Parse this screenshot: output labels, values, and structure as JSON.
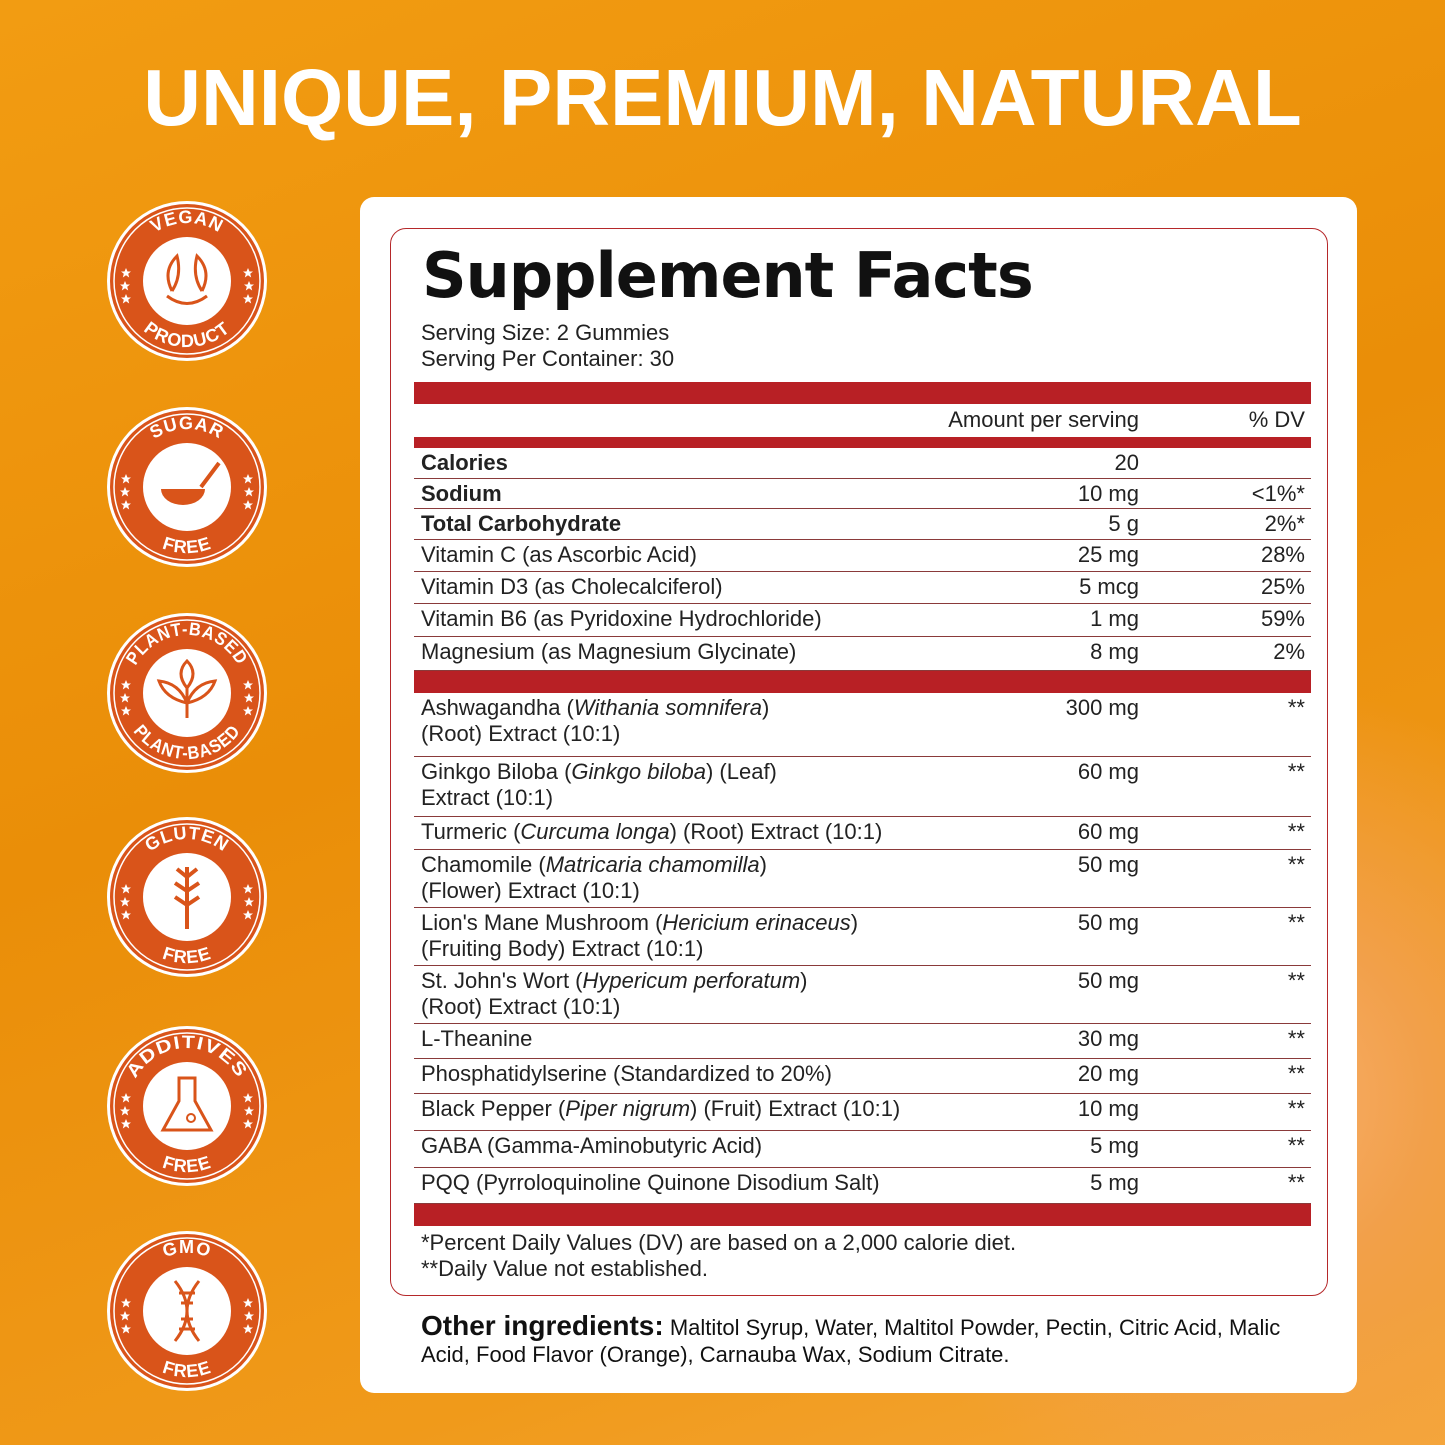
{
  "title": "UNIQUE, PREMIUM, NATURAL",
  "colors": {
    "badge": "#d9541a",
    "table_bar": "#b82025",
    "background": "#ee930e"
  },
  "badges": [
    {
      "top": "VEGAN",
      "bottom": "PRODUCT",
      "icon": "leaf-icon"
    },
    {
      "top": "SUGAR",
      "bottom": "FREE",
      "icon": "sugar-spoon-icon"
    },
    {
      "top": "PLANT-BASED",
      "bottom": "PLANT-BASED",
      "icon": "plant-icon"
    },
    {
      "top": "GLUTEN",
      "bottom": "FREE",
      "icon": "wheat-icon"
    },
    {
      "top": "ADDITIVES",
      "bottom": "FREE",
      "icon": "flask-icon"
    },
    {
      "top": "GMO",
      "bottom": "FREE",
      "icon": "dna-icon"
    }
  ],
  "facts": {
    "title": "Supplement Facts",
    "serving_size": "Serving Size: 2 Gummies",
    "servings_per_container": "Serving Per Container: 30",
    "col_amount": "Amount per serving",
    "col_dv": "% DV",
    "rows1": [
      {
        "name": [
          {
            "t": "Calories"
          }
        ],
        "amount": "20",
        "dv": "",
        "bold": true
      },
      {
        "name": [
          {
            "t": "Sodium"
          }
        ],
        "amount": "10 mg",
        "dv": "<1%*",
        "bold": true
      },
      {
        "name": [
          {
            "t": "Total Carbohydrate"
          }
        ],
        "amount": "5 g",
        "dv": "2%*",
        "bold": true
      },
      {
        "name": [
          {
            "t": "Vitamin C (as Ascorbic Acid)"
          }
        ],
        "amount": "25 mg",
        "dv": "28%"
      },
      {
        "name": [
          {
            "t": "Vitamin D3 (as Cholecalciferol)"
          }
        ],
        "amount": "5 mcg",
        "dv": "25%"
      },
      {
        "name": [
          {
            "t": "Vitamin B6 (as Pyridoxine Hydrochloride)"
          }
        ],
        "amount": "1 mg",
        "dv": "59%"
      },
      {
        "name": [
          {
            "t": "Magnesium (as Magnesium Glycinate)"
          }
        ],
        "amount": "8 mg",
        "dv": "2%"
      }
    ],
    "rows2": [
      {
        "name": [
          {
            "t": "Ashwagandha ("
          },
          {
            "t": "Withania somnifera",
            "i": true
          },
          {
            "t": ")\n(Root) Extract (10:1)"
          }
        ],
        "amount": "300 mg",
        "dv": "**"
      },
      {
        "name": [
          {
            "t": "Ginkgo Biloba ("
          },
          {
            "t": "Ginkgo biloba",
            "i": true
          },
          {
            "t": ") (Leaf)\nExtract (10:1)"
          }
        ],
        "amount": "60 mg",
        "dv": "**"
      },
      {
        "name": [
          {
            "t": "Turmeric ("
          },
          {
            "t": "Curcuma longa",
            "i": true
          },
          {
            "t": ") (Root) Extract (10:1)"
          }
        ],
        "amount": "60 mg",
        "dv": "**"
      },
      {
        "name": [
          {
            "t": "Chamomile ("
          },
          {
            "t": "Matricaria chamomilla",
            "i": true
          },
          {
            "t": ")\n(Flower) Extract (10:1)"
          }
        ],
        "amount": "50 mg",
        "dv": "**"
      },
      {
        "name": [
          {
            "t": "Lion's Mane Mushroom ("
          },
          {
            "t": "Hericium erinaceus",
            "i": true
          },
          {
            "t": ")\n(Fruiting Body) Extract (10:1)"
          }
        ],
        "amount": "50 mg",
        "dv": "**"
      },
      {
        "name": [
          {
            "t": "St. John's Wort ("
          },
          {
            "t": "Hypericum perforatum",
            "i": true
          },
          {
            "t": ")\n(Root) Extract (10:1)"
          }
        ],
        "amount": "50 mg",
        "dv": "**"
      },
      {
        "name": [
          {
            "t": "L-Theanine"
          }
        ],
        "amount": "30 mg",
        "dv": "**"
      },
      {
        "name": [
          {
            "t": "Phosphatidylserine (Standardized to 20%)"
          }
        ],
        "amount": "20 mg",
        "dv": "**"
      },
      {
        "name": [
          {
            "t": "Black Pepper ("
          },
          {
            "t": "Piper nigrum",
            "i": true
          },
          {
            "t": ") (Fruit) Extract (10:1)"
          }
        ],
        "amount": "10 mg",
        "dv": "**"
      },
      {
        "name": [
          {
            "t": "GABA (Gamma-Aminobutyric Acid)"
          }
        ],
        "amount": "5 mg",
        "dv": "**"
      },
      {
        "name": [
          {
            "t": "PQQ (Pyrroloquinoline Quinone Disodium Salt)"
          }
        ],
        "amount": "5 mg",
        "dv": "**"
      }
    ],
    "footnote1": "*Percent Daily Values (DV) are based on a 2,000 calorie diet.",
    "footnote2": "**Daily Value not established.",
    "other_label": "Other ingredients:",
    "other_text": " Maltitol Syrup, Water, Maltitol Powder,  Pectin, Citric Acid, Malic Acid, Food Flavor (Orange), Carnauba Wax, Sodium Citrate."
  }
}
